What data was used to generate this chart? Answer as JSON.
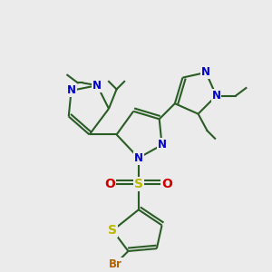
{
  "bg_color": "#ebebeb",
  "bond_color": "#2a5c25",
  "bond_width": 1.5,
  "double_sep": 0.12,
  "atoms": {
    "N": "#0000cc",
    "S": "#b8b800",
    "O": "#cc0000",
    "Br": "#b36200",
    "C": "#2a5c25"
  }
}
